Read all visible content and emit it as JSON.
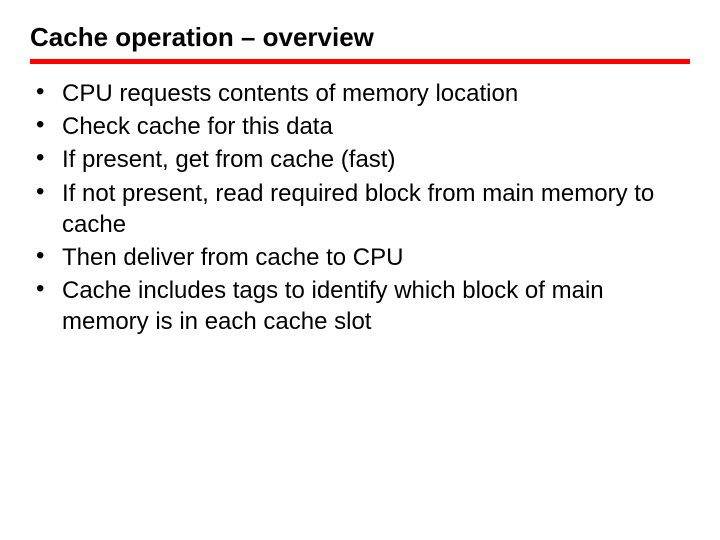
{
  "slide": {
    "title": "Cache operation – overview",
    "title_fontsize": 26,
    "title_color": "#000000",
    "underline_color": "#ff0000",
    "underline_thickness": 5,
    "background_color": "#ffffff",
    "bullet_fontsize": 24,
    "bullet_lineheight": 1.3,
    "bullet_color": "#000000",
    "items": [
      "CPU requests contents of memory location",
      "Check cache for this data",
      "If present, get from cache (fast)",
      "If not present, read required block from main memory to cache",
      "Then deliver from cache to CPU",
      "Cache includes tags to identify which block of main memory is in each cache slot"
    ]
  }
}
